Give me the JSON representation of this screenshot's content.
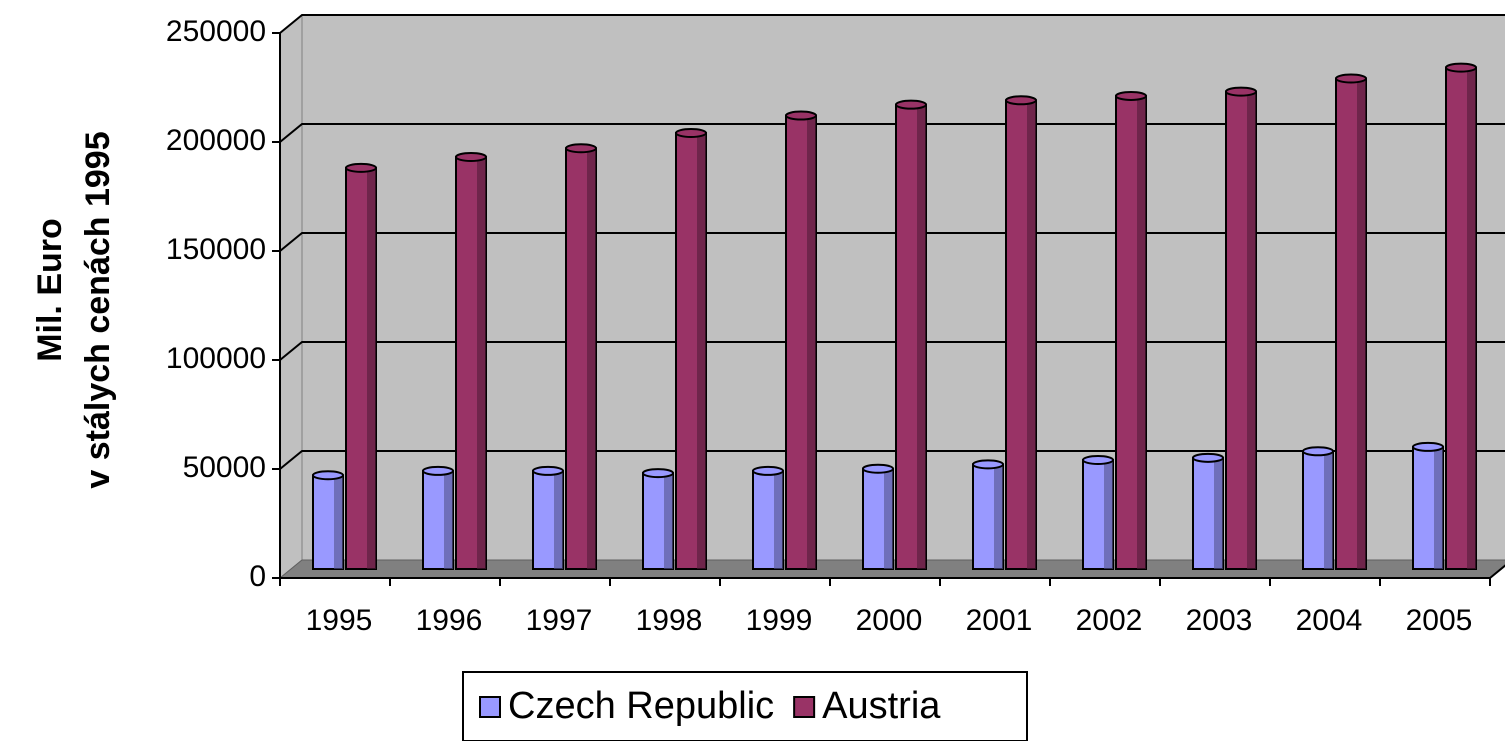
{
  "chart_data": {
    "type": "bar",
    "y_axis_label": [
      "Mil. Euro",
      "v stálych cenách 1995"
    ],
    "categories": [
      "1995",
      "1996",
      "1997",
      "1998",
      "1999",
      "2000",
      "2001",
      "2002",
      "2003",
      "2004",
      "2005"
    ],
    "series": [
      {
        "name": "Czech Republic",
        "color": "#9999ff",
        "values": [
          43000,
          45000,
          45000,
          44000,
          45000,
          46000,
          48000,
          50000,
          51000,
          54000,
          56000
        ]
      },
      {
        "name": "Austria",
        "color": "#993366",
        "values": [
          184000,
          189000,
          193000,
          200000,
          208000,
          213000,
          215000,
          217000,
          219000,
          225000,
          230000
        ]
      }
    ],
    "ylim": [
      0,
      250000
    ],
    "yticks": [
      0,
      50000,
      100000,
      150000,
      200000,
      250000
    ],
    "grid": true
  }
}
